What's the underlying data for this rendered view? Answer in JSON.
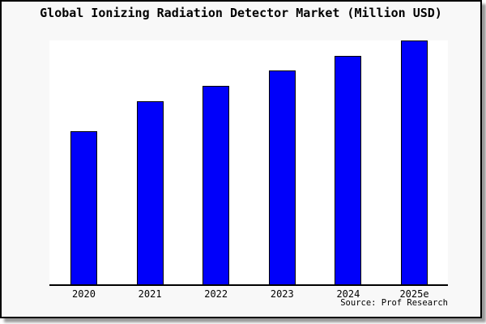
{
  "title": "Global Ionizing Radiation Detector Market (Million USD)",
  "source_note": "Source: Prof Research",
  "colors": {
    "bar_fill": "#0000FA",
    "bar_border": "#000000",
    "frame_bg": "#F8F8F8",
    "plot_bg": "#FFFFFF",
    "frame_border": "#000000",
    "shadow": "#9A9A9A"
  },
  "chart_data": {
    "type": "bar",
    "title": "Global Ionizing Radiation Detector Market (Million USD)",
    "categories": [
      "2020",
      "2021",
      "2022",
      "2023",
      "2024",
      "2025e"
    ],
    "values": [
      62.7,
      75.1,
      81.5,
      87.8,
      93.8,
      100
    ],
    "value_basis": "relative bar heights, tallest bar (2025e) = 100; chart shows no y-axis tick labels or gridlines",
    "xlabel": "",
    "ylabel": "",
    "ylim": [
      0,
      100
    ],
    "grid": false,
    "legend": false,
    "source_note": "Source: Prof Research"
  }
}
